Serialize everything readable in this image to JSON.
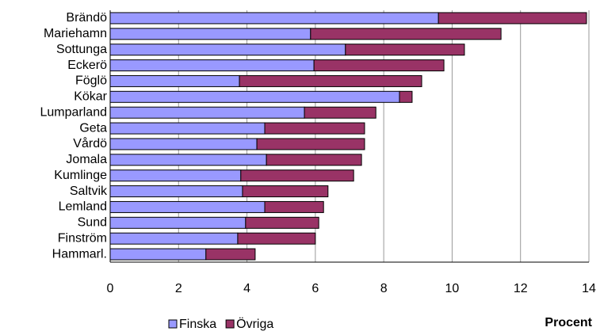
{
  "chart_data": {
    "type": "stacked_bar_horizontal",
    "categories": [
      "Brändö",
      "Mariehamn",
      "Sottunga",
      "Eckerö",
      "Föglö",
      "Kökar",
      "Lumparland",
      "Geta",
      "Vårdö",
      "Jomala",
      "Kumlinge",
      "Saltvik",
      "Lemland",
      "Sund",
      "Finström",
      "Hammarl."
    ],
    "series": [
      {
        "name": "Finska",
        "color": "#9999ff",
        "values": [
          9.6,
          5.86,
          6.88,
          5.96,
          3.78,
          8.46,
          5.68,
          4.52,
          4.29,
          4.57,
          3.82,
          3.87,
          4.52,
          3.96,
          3.73,
          2.8
        ]
      },
      {
        "name": "Övriga",
        "color": "#993366",
        "values": [
          4.33,
          5.57,
          3.48,
          3.8,
          5.33,
          0.37,
          2.09,
          2.92,
          3.15,
          2.78,
          3.3,
          2.5,
          1.72,
          2.14,
          2.27,
          1.44
        ]
      }
    ],
    "xlabel": "Procent",
    "xlim": [
      0,
      14
    ],
    "xticks": [
      0,
      2,
      4,
      6,
      8,
      10,
      12,
      14
    ],
    "grid": true,
    "legend": "bottom"
  }
}
